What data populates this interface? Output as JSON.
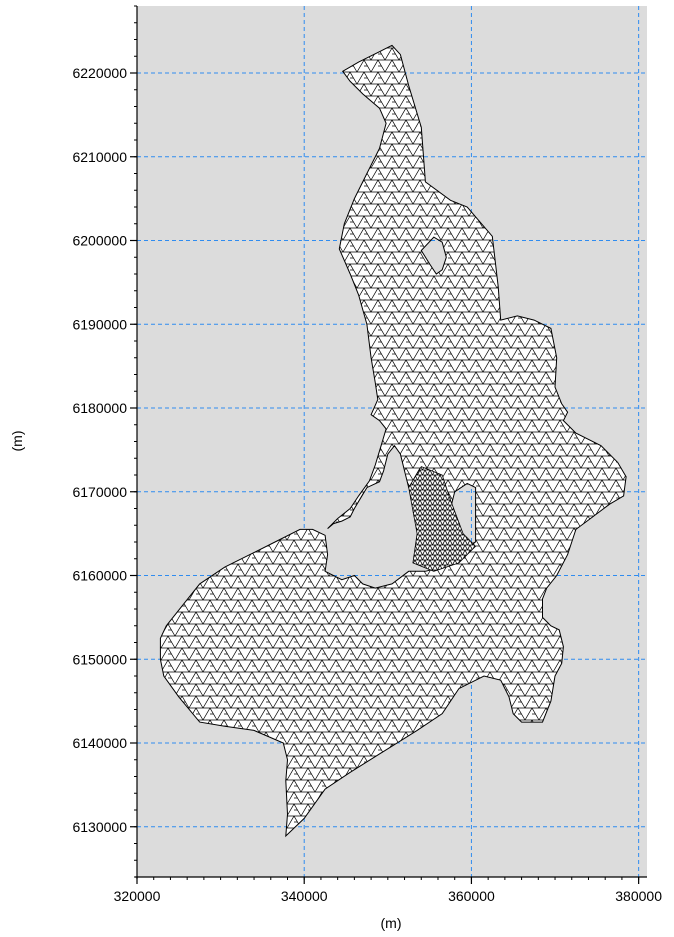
{
  "chart_data": {
    "type": "mesh",
    "xlabel": "(m)",
    "ylabel": "(m)",
    "xlim": [
      320000,
      381000
    ],
    "ylim": [
      6124000,
      6228000
    ],
    "xticks": [
      320000,
      340000,
      360000,
      380000
    ],
    "yticks": [
      6130000,
      6140000,
      6150000,
      6160000,
      6170000,
      6180000,
      6190000,
      6200000,
      6210000,
      6220000
    ],
    "x_minor_step": 2000,
    "y_minor_step": 2000,
    "grid": true,
    "colors": {
      "plot_background": "#dcdcdc",
      "grid": "#2f8cf0",
      "mesh_fill": "#ffffff",
      "mesh_line": "#000000"
    },
    "domain_outline": [
      [
        344600,
        6220200
      ],
      [
        346500,
        6221300
      ],
      [
        349500,
        6222800
      ],
      [
        350500,
        6223300
      ],
      [
        351500,
        6222200
      ],
      [
        352500,
        6218500
      ],
      [
        354000,
        6213500
      ],
      [
        354500,
        6207000
      ],
      [
        357500,
        6204800
      ],
      [
        359500,
        6204000
      ],
      [
        362500,
        6200500
      ],
      [
        363200,
        6194500
      ],
      [
        363500,
        6190500
      ],
      [
        365500,
        6191000
      ],
      [
        367500,
        6190500
      ],
      [
        369500,
        6189500
      ],
      [
        370200,
        6186000
      ],
      [
        370000,
        6182500
      ],
      [
        370800,
        6180500
      ],
      [
        371500,
        6179500
      ],
      [
        371000,
        6178500
      ],
      [
        372500,
        6177000
      ],
      [
        375500,
        6175500
      ],
      [
        377500,
        6173500
      ],
      [
        378500,
        6171800
      ],
      [
        378200,
        6169500
      ],
      [
        376500,
        6168500
      ],
      [
        374500,
        6167000
      ],
      [
        372500,
        6165500
      ],
      [
        371500,
        6162500
      ],
      [
        370200,
        6160000
      ],
      [
        369000,
        6158500
      ],
      [
        368500,
        6157200
      ],
      [
        368500,
        6155000
      ],
      [
        369500,
        6154000
      ],
      [
        370500,
        6153500
      ],
      [
        371000,
        6151500
      ],
      [
        370800,
        6149500
      ],
      [
        370000,
        6148000
      ],
      [
        369500,
        6145000
      ],
      [
        368500,
        6142500
      ],
      [
        366000,
        6142500
      ],
      [
        365000,
        6143500
      ],
      [
        364500,
        6145500
      ],
      [
        363500,
        6147500
      ],
      [
        361500,
        6148000
      ],
      [
        358500,
        6146500
      ],
      [
        356500,
        6143500
      ],
      [
        353500,
        6141500
      ],
      [
        349500,
        6139000
      ],
      [
        345500,
        6136500
      ],
      [
        342500,
        6134500
      ],
      [
        340000,
        6131000
      ],
      [
        337800,
        6128900
      ],
      [
        338000,
        6131500
      ],
      [
        337800,
        6135500
      ],
      [
        338000,
        6138000
      ],
      [
        337500,
        6140000
      ],
      [
        334000,
        6141500
      ],
      [
        330500,
        6142000
      ],
      [
        327500,
        6142500
      ],
      [
        325000,
        6145500
      ],
      [
        323200,
        6148000
      ],
      [
        322800,
        6150000
      ],
      [
        322800,
        6152500
      ],
      [
        323500,
        6154000
      ],
      [
        325500,
        6156500
      ],
      [
        327500,
        6159000
      ],
      [
        330500,
        6161000
      ],
      [
        333500,
        6162500
      ],
      [
        336500,
        6164000
      ],
      [
        339500,
        6165500
      ],
      [
        341000,
        6165500
      ],
      [
        342500,
        6164800
      ],
      [
        342800,
        6162500
      ],
      [
        342500,
        6160500
      ],
      [
        344500,
        6159500
      ],
      [
        346000,
        6160000
      ],
      [
        347000,
        6159000
      ],
      [
        348500,
        6158500
      ],
      [
        350500,
        6159000
      ],
      [
        352500,
        6160500
      ],
      [
        354500,
        6160500
      ],
      [
        356500,
        6161000
      ],
      [
        358500,
        6162500
      ],
      [
        359500,
        6163500
      ],
      [
        360500,
        6164000
      ],
      [
        360500,
        6166500
      ],
      [
        360500,
        6170500
      ],
      [
        359500,
        6171000
      ],
      [
        358000,
        6170000
      ],
      [
        357500,
        6168000
      ],
      [
        356500,
        6166500
      ],
      [
        355500,
        6165500
      ],
      [
        354500,
        6166500
      ],
      [
        353500,
        6168500
      ],
      [
        352500,
        6170500
      ],
      [
        352000,
        6172500
      ],
      [
        351500,
        6174500
      ],
      [
        350800,
        6175500
      ],
      [
        350000,
        6174500
      ],
      [
        349500,
        6172500
      ],
      [
        349000,
        6171200
      ],
      [
        347500,
        6170500
      ],
      [
        346000,
        6168000
      ],
      [
        345500,
        6167000
      ],
      [
        344500,
        6166500
      ],
      [
        343500,
        6166200
      ],
      [
        342800,
        6165600
      ],
      [
        344000,
        6166800
      ],
      [
        345500,
        6168000
      ],
      [
        346500,
        6169500
      ],
      [
        347800,
        6171300
      ],
      [
        348500,
        6173200
      ],
      [
        349200,
        6175500
      ],
      [
        349800,
        6177500
      ],
      [
        349000,
        6178500
      ],
      [
        348000,
        6179200
      ],
      [
        348800,
        6181000
      ],
      [
        348500,
        6183000
      ],
      [
        348000,
        6186000
      ],
      [
        347500,
        6190000
      ],
      [
        346500,
        6193500
      ],
      [
        345500,
        6196000
      ],
      [
        344200,
        6199000
      ],
      [
        344800,
        6202000
      ],
      [
        346000,
        6205000
      ],
      [
        347500,
        6208000
      ],
      [
        349000,
        6211000
      ],
      [
        349800,
        6214000
      ],
      [
        349000,
        6215800
      ],
      [
        347000,
        6217500
      ],
      [
        345500,
        6219000
      ]
    ],
    "holes": [
      [
        [
          354000,
          6198800
        ],
        [
          355500,
          6200400
        ],
        [
          356500,
          6199800
        ],
        [
          357000,
          6198000
        ],
        [
          356500,
          6196500
        ],
        [
          355800,
          6196000
        ],
        [
          355000,
          6197200
        ]
      ]
    ]
  }
}
